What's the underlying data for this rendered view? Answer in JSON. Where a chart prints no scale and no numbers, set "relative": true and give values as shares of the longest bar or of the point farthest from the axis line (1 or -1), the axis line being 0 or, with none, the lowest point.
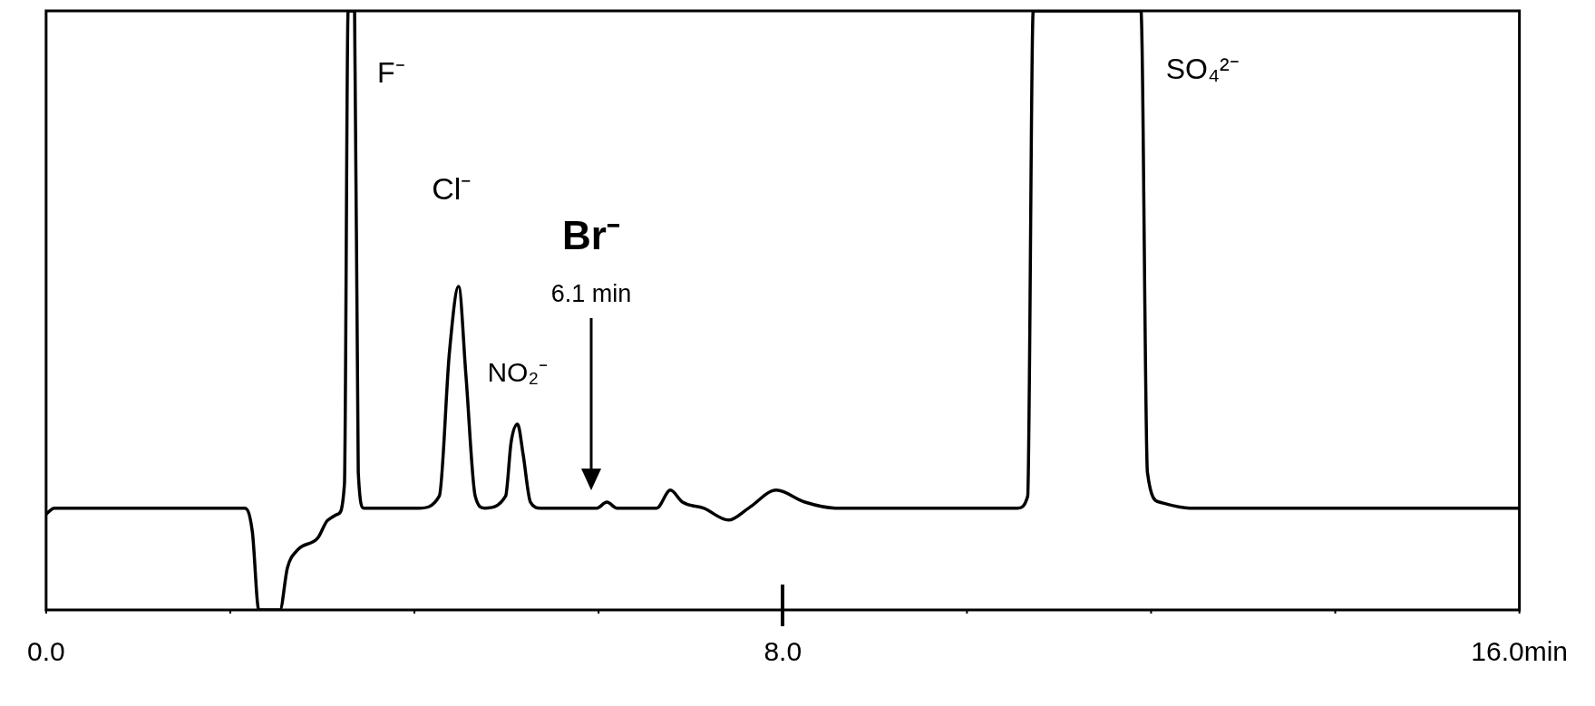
{
  "chart_data": {
    "type": "line",
    "relative": true,
    "x": [
      0,
      0.09,
      2.16,
      2.24,
      2.31,
      2.54,
      2.62,
      2.73,
      2.95,
      3.06,
      3.17,
      3.24,
      3.28,
      3.35,
      3.39,
      3.45,
      4.05,
      4.27,
      4.38,
      4.48,
      4.56,
      4.66,
      4.76,
      4.99,
      5.05,
      5.12,
      5.18,
      5.26,
      5.37,
      5.98,
      6.09,
      6.2,
      6.63,
      6.78,
      6.91,
      7.14,
      7.41,
      7.63,
      7.93,
      8.24,
      8.57,
      10.55,
      10.66,
      10.72,
      11.89,
      11.96,
      12.09,
      12.42,
      16
    ],
    "series": [
      {
        "color": "#000000",
        "values": [
          0.16,
          0.17,
          0.17,
          0.13,
          0,
          0,
          0.07,
          0.1,
          0.12,
          0.15,
          0.16,
          0.21,
          1,
          1,
          0.23,
          0.17,
          0.17,
          0.19,
          0.43,
          0.54,
          0.39,
          0.19,
          0.17,
          0.19,
          0.28,
          0.31,
          0.26,
          0.18,
          0.17,
          0.17,
          0.18,
          0.17,
          0.17,
          0.2,
          0.18,
          0.17,
          0.15,
          0.17,
          0.2,
          0.18,
          0.17,
          0.17,
          0.19,
          1,
          1,
          0.23,
          0.18,
          0.17,
          0.17
        ]
      }
    ],
    "xlim": [
      0,
      16
    ],
    "xticks": [
      {
        "value": 0,
        "label": "0.0"
      },
      {
        "value": 2,
        "label": null
      },
      {
        "value": 4,
        "label": null
      },
      {
        "value": 6,
        "label": null
      },
      {
        "value": 8,
        "label": "8.0"
      },
      {
        "value": 10,
        "label": null
      },
      {
        "value": 12,
        "label": null
      },
      {
        "value": 14,
        "label": null
      },
      {
        "value": 16,
        "label": "16.0min"
      }
    ],
    "grid": false,
    "legend": false,
    "marker": "none",
    "line_style": "solid",
    "annotations": [
      {
        "text": "F⁻",
        "x": 3.3,
        "y": 1
      },
      {
        "text": "Cl⁻",
        "x": 4.48,
        "y": 0.54
      },
      {
        "text": "NO₂⁻",
        "x": 5.12,
        "y": 0.31
      },
      "Br⁻",
      "6.1 min",
      "SO₄²⁻"
    ]
  }
}
